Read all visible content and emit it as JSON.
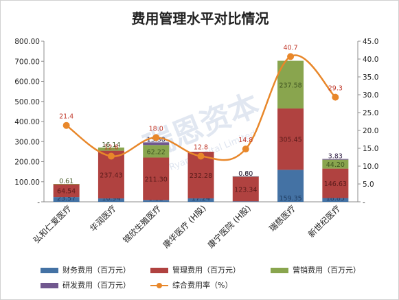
{
  "title": "费用管理水平对比情况",
  "watermark": {
    "text": "瑞恩资本",
    "subtext": "Ryan Capital Limited"
  },
  "legend": {
    "items": [
      {
        "label": "财务费用（百万元）",
        "color": "#4472a4",
        "kind": "bar"
      },
      {
        "label": "管理费用（百万元）",
        "color": "#b04240",
        "kind": "bar"
      },
      {
        "label": "营销费用（百万元）",
        "color": "#89a54e",
        "kind": "bar"
      },
      {
        "label": "研发费用（百万元）",
        "color": "#71588f",
        "kind": "bar"
      },
      {
        "label": "综合费用率（%）",
        "color": "#e8872a",
        "kind": "line"
      }
    ]
  },
  "chart_data": {
    "type": "bar",
    "stacked": true,
    "categories": [
      "弘和仁爱医疗",
      "华润医疗",
      "锦欣生殖医疗",
      "康华医疗 (H股)",
      "康宁医院 (H股)",
      "瑞慈医疗",
      "新世纪医疗"
    ],
    "series": [
      {
        "name": "财务费用（百万元）",
        "color": "#4472a4",
        "values": [
          23.57,
          16.94,
          9.32,
          17.24,
          2.35,
          159.35,
          18.85
        ],
        "labels": [
          "23.57",
          "16.94",
          "9.32",
          "17.24",
          "2.35",
          "159.35",
          "18.85"
        ]
      },
      {
        "name": "管理费用（百万元）",
        "color": "#b04240",
        "values": [
          64.54,
          237.43,
          211.3,
          232.28,
          123.34,
          305.45,
          146.63
        ],
        "labels": [
          "64.54",
          "237.43",
          "211.30",
          "232.28",
          "123.34",
          "305.45",
          "146.63"
        ]
      },
      {
        "name": "营销费用（百万元）",
        "color": "#89a54e",
        "values": [
          0.61,
          16.14,
          62.22,
          0,
          0.6,
          237.58,
          44.2
        ],
        "labels": [
          "0.61",
          "16.14",
          "62.22",
          "",
          "0.60",
          "237.58",
          "44.20"
        ]
      },
      {
        "name": "研发费用（百万元）",
        "color": "#71588f",
        "values": [
          0,
          0,
          13.3,
          0,
          0.8,
          0,
          3.83
        ],
        "labels": [
          "",
          "",
          "13.30",
          "",
          "0.80",
          "",
          "3.83"
        ]
      }
    ],
    "line": {
      "name": "综合费用率（%）",
      "color": "#e8872a",
      "values": [
        21.4,
        12.8,
        18.0,
        12.8,
        14.8,
        40.7,
        29.3
      ],
      "labels": [
        "21.4",
        "12.8",
        "18.0",
        "12.8",
        "14.8",
        "40.7",
        "29.3"
      ]
    },
    "y_left": {
      "min": 0,
      "max": 800,
      "step": 100,
      "ticks": [
        "-",
        "100.00",
        "200.00",
        "300.00",
        "400.00",
        "500.00",
        "600.00",
        "700.00",
        "800.00"
      ]
    },
    "y_right": {
      "min": 0,
      "max": 45,
      "step": 5,
      "ticks": [
        "-",
        "5.0",
        "10.0",
        "15.0",
        "20.0",
        "25.0",
        "30.0",
        "35.0",
        "40.0",
        "45.0"
      ]
    },
    "grid": false,
    "legend_position": "bottom"
  }
}
